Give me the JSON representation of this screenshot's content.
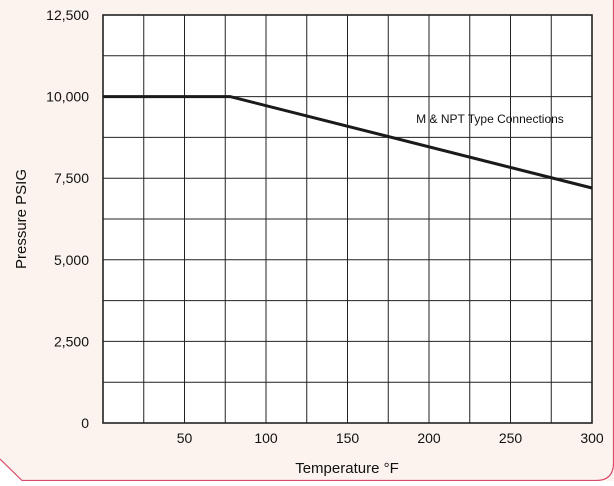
{
  "colors": {
    "background": "#fcf3ee",
    "border": "#d94a6b",
    "grid": "#222222",
    "line": "#1a1a1a",
    "text": "#111111"
  },
  "chart_data": {
    "type": "line",
    "title": "",
    "xlabel": "Temperature °F",
    "ylabel": "Pressure PSIG",
    "xlim": [
      0,
      300
    ],
    "ylim": [
      0,
      12500
    ],
    "x_ticks": [
      50,
      100,
      150,
      200,
      250,
      300
    ],
    "x_tick_labels": [
      "50",
      "100",
      "150",
      "200",
      "250",
      "300"
    ],
    "y_ticks": [
      0,
      2500,
      5000,
      7500,
      10000,
      12500
    ],
    "y_tick_labels": [
      "0",
      "2,500",
      "5,000",
      "7,500",
      "10,000",
      "12,500"
    ],
    "x_gridlines": [
      0,
      25,
      50,
      75,
      100,
      125,
      150,
      175,
      200,
      225,
      250,
      275,
      300
    ],
    "y_gridlines": [
      0,
      1250,
      2500,
      3750,
      5000,
      6250,
      7500,
      8750,
      10000,
      11250,
      12500
    ],
    "grid": true,
    "legend": "none",
    "series": [
      {
        "x": [
          0,
          78,
          300
        ],
        "y": [
          10000,
          10000,
          7200
        ]
      }
    ],
    "annotations": [
      {
        "text": "M & NPT Type Connections",
        "x": 200,
        "y": 9200
      }
    ]
  }
}
